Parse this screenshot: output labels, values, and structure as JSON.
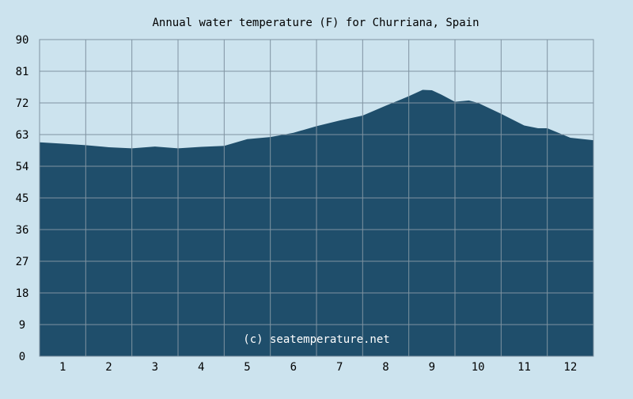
{
  "chart_data": {
    "type": "area",
    "title": "Annual water temperature (F) for Churriana, Spain",
    "xlabel": "",
    "ylabel": "",
    "categories": [
      "1",
      "2",
      "3",
      "4",
      "5",
      "6",
      "7",
      "8",
      "9",
      "10",
      "11",
      "12"
    ],
    "ylim": [
      0,
      90
    ],
    "yticks": [
      "0",
      "9",
      "18",
      "27",
      "36",
      "45",
      "54",
      "63",
      "72",
      "81",
      "90"
    ],
    "grid": true,
    "legend": "none",
    "x": [
      0,
      0.5,
      1,
      1.5,
      2,
      2.5,
      3,
      3.5,
      4,
      4.5,
      5,
      5.5,
      6,
      6.5,
      7,
      7.5,
      8,
      8.3,
      8.5,
      8.7,
      9,
      9.3,
      9.5,
      10,
      10.5,
      10.8,
      11,
      11.5,
      12
    ],
    "values": [
      60.8,
      60.4,
      60.0,
      59.4,
      59.1,
      59.6,
      59.1,
      59.5,
      59.8,
      61.7,
      62.3,
      63.5,
      65.4,
      67.0,
      68.4,
      71.2,
      73.9,
      75.7,
      75.6,
      74.4,
      72.3,
      72.7,
      72.0,
      68.9,
      65.6,
      64.8,
      64.8,
      62.1,
      61.4
    ],
    "watermark": "(c) seatemperature.net",
    "colors": {
      "background": "#cce3ee",
      "area": "#1f4e6b",
      "grid": "#7f93a1"
    }
  }
}
